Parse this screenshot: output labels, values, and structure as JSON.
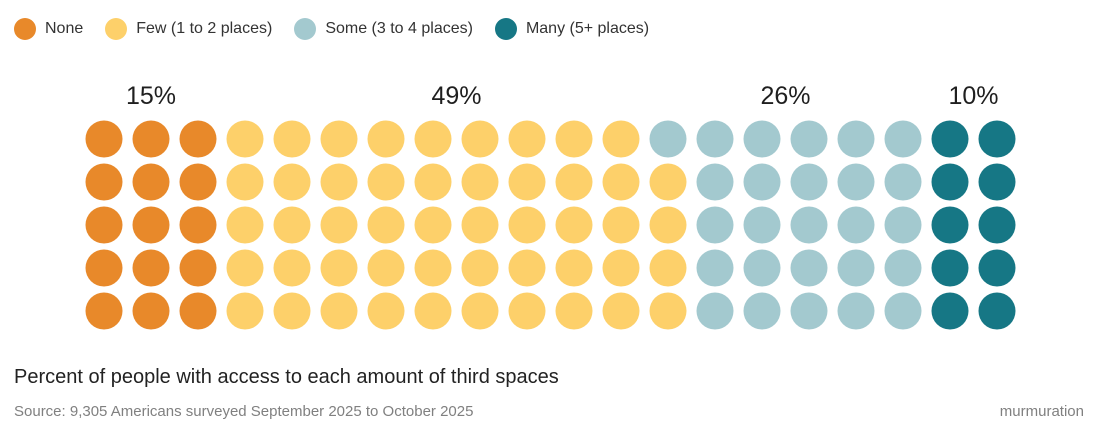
{
  "chart_data": {
    "type": "waffle",
    "title": "Percent of people with access to each amount of third spaces",
    "source": "Source: 9,305 Americans surveyed September 2025 to October 2025",
    "brand": "murmuration",
    "rows": 5,
    "columns": 20,
    "legend_position": "top-left",
    "categories": [
      {
        "name": "None",
        "value": 15,
        "label": "15%",
        "color": "#E8892A"
      },
      {
        "name": "Few (1 to 2 places)",
        "value": 49,
        "label": "49%",
        "color": "#FDD06A"
      },
      {
        "name": "Some (3 to 4 places)",
        "value": 26,
        "label": "26%",
        "color": "#A3C9CF"
      },
      {
        "name": "Many (5+ places)",
        "value": 10,
        "label": "10%",
        "color": "#167785"
      }
    ]
  }
}
